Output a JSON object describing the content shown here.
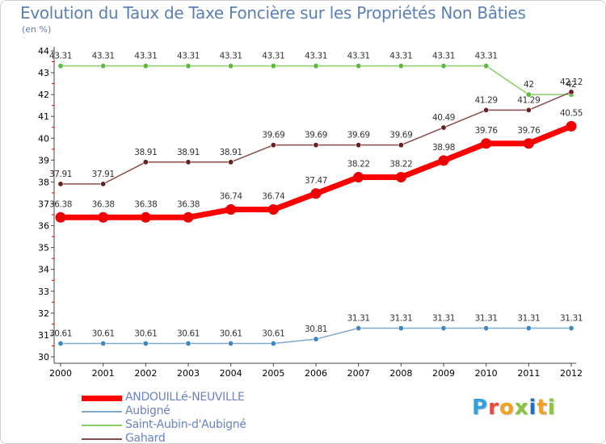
{
  "chart_data": {
    "type": "line",
    "title": "Evolution du Taux de Taxe Foncière sur les Propriétés Non Bâties",
    "subtitle": "(en %)",
    "x": [
      "2000",
      "2001",
      "2002",
      "2003",
      "2004",
      "2005",
      "2006",
      "2007",
      "2008",
      "2009",
      "2010",
      "2011",
      "2012"
    ],
    "ylim": [
      30,
      44
    ],
    "yticks": [
      30,
      31,
      32,
      33,
      34,
      35,
      36,
      37,
      38,
      39,
      40,
      41,
      42,
      43,
      44
    ],
    "grid": false,
    "legend_position": "bottom-left",
    "series": [
      {
        "name": "ANDOUILLé-NEUVILLE",
        "color": "#ff0000",
        "marker_color": "#ee0000",
        "width": 7,
        "values": [
          36.38,
          36.38,
          36.38,
          36.38,
          36.74,
          36.74,
          37.47,
          38.22,
          38.22,
          38.98,
          39.76,
          39.76,
          40.55
        ],
        "labels": [
          "36.38",
          "36.38",
          "36.38",
          "36.38",
          "36.74",
          "36.74",
          "37.47",
          "38.22",
          "38.22",
          "38.98",
          "39.76",
          "39.76",
          "40.55"
        ]
      },
      {
        "name": "Aubigné",
        "color": "#7fa9cf",
        "marker_color": "#3f87c3",
        "width": 1.5,
        "values": [
          30.61,
          30.61,
          30.61,
          30.61,
          30.61,
          30.61,
          30.81,
          31.31,
          31.31,
          31.31,
          31.31,
          31.31,
          31.31
        ],
        "labels": [
          "30.61",
          "30.61",
          "30.61",
          "30.61",
          "30.61",
          "30.61",
          "30.81",
          "31.31",
          "31.31",
          "31.31",
          "31.31",
          "31.31",
          "31.31"
        ]
      },
      {
        "name": "Saint-Aubin-d'Aubigné",
        "color": "#88d066",
        "marker_color": "#5dbb3a",
        "width": 1.5,
        "values": [
          43.31,
          43.31,
          43.31,
          43.31,
          43.31,
          43.31,
          43.31,
          43.31,
          43.31,
          43.31,
          43.31,
          42,
          42
        ],
        "labels": [
          "43.31",
          "43.31",
          "43.31",
          "43.31",
          "43.31",
          "43.31",
          "43.31",
          "43.31",
          "43.31",
          "43.31",
          "43.31",
          "42",
          "42"
        ]
      },
      {
        "name": "Gahard",
        "color": "#8a4a4a",
        "marker_color": "#6a1f1f",
        "width": 1.5,
        "values": [
          37.91,
          37.91,
          38.91,
          38.91,
          38.91,
          39.69,
          39.69,
          39.69,
          39.69,
          40.49,
          41.29,
          41.29,
          42.12
        ],
        "labels": [
          "37.91",
          "37.91",
          "38.91",
          "38.91",
          "38.91",
          "39.69",
          "39.69",
          "39.69",
          "39.69",
          "40.49",
          "41.29",
          "41.29",
          "42.12"
        ]
      }
    ]
  },
  "logo": {
    "letters": [
      "P",
      "r",
      "o",
      "x",
      "i",
      "t",
      "i"
    ],
    "colors": [
      "#33a0e0",
      "#e84a3a",
      "#f4a11c",
      "#8ac43f",
      "#1f6fc1",
      "#f4a11c",
      "#8ac43f"
    ]
  }
}
